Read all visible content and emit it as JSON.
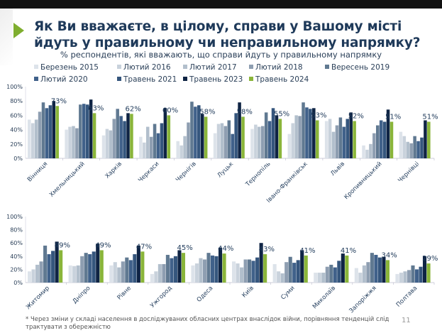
{
  "title": "Як Ви вважаєте, в цілому, справи у Вашому місті йдуть у правильному чи неправильному напрямку?",
  "subtitle": "% респондентів, які вважають, що справи йдуть у правильному напрямку",
  "footnote": "* Через зміни у складі населення в досліджуваних обласних центрах внаслідок війни, порівняння тенденцій слід трактувати з обережністю",
  "page_number": "11",
  "colors": [
    "#dde3ea",
    "#c9d2dc",
    "#b2bfcc",
    "#8e9eb1",
    "#607991",
    "#40618a",
    "#35567d",
    "#0f2444",
    "#8ab53a"
  ],
  "chart_data": [
    {
      "type": "bar",
      "ylim": [
        0,
        100
      ],
      "yticks": [
        "0%",
        "20%",
        "40%",
        "60%",
        "80%",
        "100%"
      ],
      "legend": [
        "Березень 2015",
        "Лютий 2016",
        "Лютий 2017",
        "Лютий 2018",
        "Вересень 2019",
        "Лютий 2020",
        "Травень 2021",
        "Травень 2023",
        "Травень 2024"
      ],
      "legend_position": "top",
      "categories": [
        "Вінниця",
        "Хмельницький",
        "Харків",
        "Черкаси",
        "Чернігів",
        "Луцьк",
        "Тернопіль",
        "Івано-Франківськ",
        "Львів",
        "Кропивницький",
        "Чернівці"
      ],
      "values": [
        [
          54,
          49,
          54,
          65,
          78,
          70,
          74,
          80,
          73
        ],
        [
          40,
          44,
          45,
          42,
          75,
          76,
          75,
          82,
          63
        ],
        [
          32,
          41,
          39,
          55,
          69,
          59,
          52,
          63,
          62
        ],
        [
          30,
          22,
          44,
          30,
          48,
          35,
          49,
          70,
          60
        ],
        [
          24,
          18,
          31,
          50,
          79,
          72,
          74,
          62,
          58
        ],
        [
          35,
          48,
          49,
          45,
          53,
          34,
          63,
          78,
          58
        ],
        [
          41,
          47,
          44,
          45,
          64,
          52,
          70,
          60,
          55
        ],
        [
          34,
          49,
          60,
          59,
          78,
          71,
          69,
          70,
          53
        ],
        [
          52,
          55,
          37,
          46,
          57,
          44,
          55,
          64,
          52
        ],
        [
          18,
          12,
          20,
          35,
          46,
          53,
          51,
          68,
          51
        ],
        [
          37,
          31,
          23,
          21,
          31,
          24,
          29,
          53,
          51
        ]
      ],
      "data_labels": [
        "73%",
        "63%",
        "62%",
        "60%",
        "58%",
        "58%",
        "55%",
        "53%",
        "52%",
        "51%",
        "51%"
      ]
    },
    {
      "type": "bar",
      "ylim": [
        0,
        100
      ],
      "yticks": [
        "0%",
        "20%",
        "40%",
        "60%",
        "80%",
        "100%"
      ],
      "categories": [
        "Житомир",
        "Дніпро",
        "Рівне",
        "Ужгород",
        "Одеса",
        "Київ",
        "Суми",
        "Миколаїв",
        "Запоріжжя",
        "Полтава"
      ],
      "values": [
        [
          17,
          20,
          27,
          32,
          56,
          43,
          48,
          62,
          49
        ],
        [
          26,
          25,
          26,
          40,
          45,
          43,
          47,
          59,
          49
        ],
        [
          26,
          31,
          23,
          32,
          38,
          34,
          43,
          56,
          47
        ],
        [
          13,
          17,
          28,
          28,
          42,
          37,
          40,
          49,
          45
        ],
        [
          26,
          29,
          37,
          35,
          45,
          41,
          40,
          53,
          44
        ],
        [
          32,
          29,
          23,
          35,
          35,
          33,
          38,
          60,
          43
        ],
        [
          28,
          17,
          14,
          31,
          39,
          30,
          34,
          49,
          41
        ],
        [
          15,
          15,
          15,
          24,
          27,
          23,
          33,
          44,
          41
        ],
        [
          22,
          15,
          26,
          31,
          45,
          42,
          38,
          39,
          34
        ],
        [
          13,
          15,
          17,
          19,
          26,
          20,
          24,
          40,
          29
        ]
      ],
      "data_labels": [
        "49%",
        "49%",
        "47%",
        "45%",
        "44%",
        "43%",
        "41%",
        "41%",
        "34%",
        "29%"
      ]
    }
  ]
}
